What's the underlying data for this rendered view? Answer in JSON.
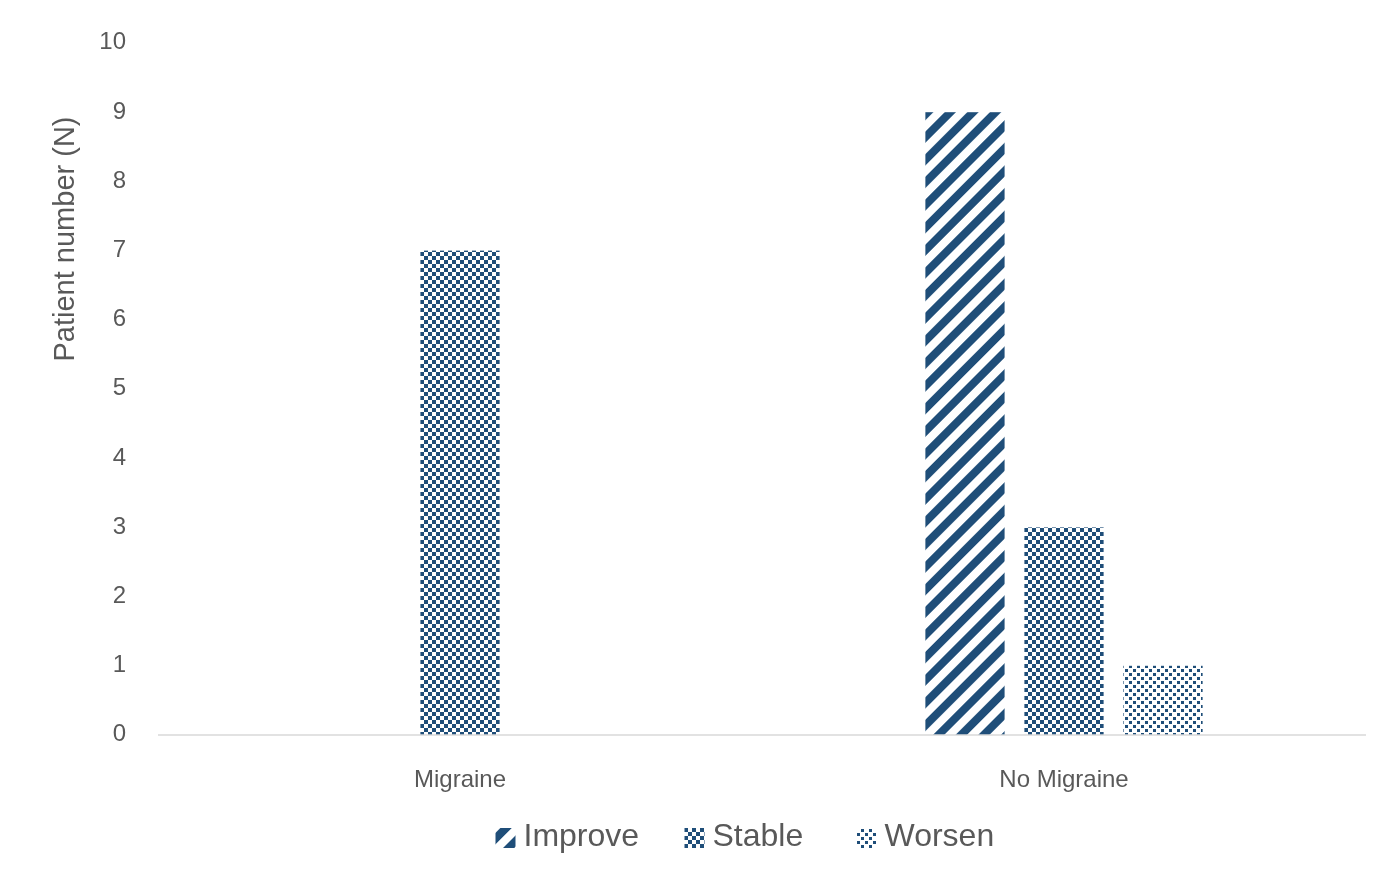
{
  "chart_data": {
    "type": "bar",
    "ylabel": "Patient number (N)",
    "categories": [
      "Migraine",
      "No Migraine"
    ],
    "series": [
      {
        "name": "Improve",
        "color": "#1f4e79",
        "values": [
          0,
          9
        ]
      },
      {
        "name": "Stable",
        "color": "#1f4e79",
        "values": [
          7,
          3
        ]
      },
      {
        "name": "Worsen",
        "color": "#1f4e79",
        "values": [
          0,
          1
        ]
      }
    ],
    "ylim": [
      0,
      10
    ],
    "yticks": [
      0,
      1,
      2,
      3,
      4,
      5,
      6,
      7,
      8,
      9,
      10
    ],
    "grid": false,
    "legend": "bottom"
  }
}
